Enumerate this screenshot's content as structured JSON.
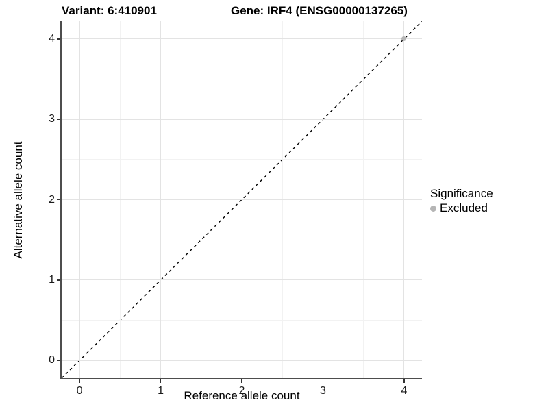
{
  "chart_data": {
    "type": "scatter",
    "title_left": "Variant: 6:410901",
    "title_right": "Gene: IRF4 (ENSG00000137265)",
    "xlabel": "Reference allele count",
    "ylabel": "Alternative allele count",
    "xlim": [
      -0.22,
      4.22
    ],
    "ylim": [
      -0.22,
      4.22
    ],
    "xticks": [
      0,
      1,
      2,
      3,
      4
    ],
    "yticks": [
      0,
      1,
      2,
      3,
      4
    ],
    "xminor": [
      0.5,
      1.5,
      2.5,
      3.5
    ],
    "yminor": [
      0.5,
      1.5,
      2.5,
      3.5
    ],
    "grid": "major+minor",
    "points": [
      {
        "x": 4,
        "y": 4,
        "series": "Excluded",
        "color": "#b5b5b5"
      }
    ],
    "reference_line": {
      "slope": 1,
      "intercept": 0,
      "style": "dashed",
      "color": "#000000"
    },
    "legend": {
      "title": "Significance",
      "position": "right",
      "entries": [
        {
          "label": "Excluded",
          "marker": "circle",
          "color": "#b5b5b5"
        }
      ]
    },
    "colors": {
      "grid_major": "#e3e3e3",
      "grid_minor": "#f2f2f2",
      "axis_line": "#4d4d4d",
      "text": "#000000",
      "background": "#ffffff"
    }
  }
}
